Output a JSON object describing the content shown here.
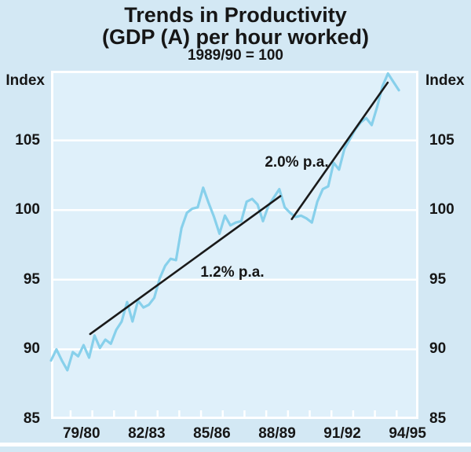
{
  "chart_data": {
    "type": "line",
    "title": "Trends in Productivity",
    "subtitle": "(GDP (A) per hour worked)",
    "index_base_note": "1989/90 = 100",
    "ylabel_left": "Index",
    "ylabel_right": "Index",
    "ylim": [
      85,
      110
    ],
    "yticks": [
      85,
      90,
      95,
      100,
      105
    ],
    "gridlines": [
      90,
      95,
      100,
      105
    ],
    "x_tick_labels": [
      "79/80",
      "82/83",
      "85/86",
      "88/89",
      "91/92",
      "94/95"
    ],
    "axis_layout": {
      "first_tick_quarter": 3.6,
      "quarters_per_tick": 4,
      "ticks_count": 16,
      "label_every": 3,
      "total_quarters": 67.6
    },
    "series": [
      {
        "name": "GDP (A) per hour worked, index 1989/90 = 100",
        "frequency": "quarterly",
        "values": [
          89.2,
          90.0,
          89.2,
          88.5,
          89.8,
          89.5,
          90.3,
          89.4,
          91.0,
          90.1,
          90.7,
          90.4,
          91.4,
          92.0,
          93.4,
          92.0,
          93.5,
          93.0,
          93.2,
          93.7,
          95.1,
          96.0,
          96.5,
          96.4,
          98.7,
          99.8,
          100.1,
          100.2,
          101.6,
          100.5,
          99.5,
          98.3,
          99.6,
          98.9,
          99.1,
          99.2,
          100.6,
          100.8,
          100.4,
          99.2,
          100.3,
          100.9,
          101.5,
          100.2,
          99.8,
          99.5,
          99.6,
          99.4,
          99.1,
          100.6,
          101.5,
          101.7,
          103.4,
          102.9,
          104.4,
          105.1,
          105.8,
          106.3,
          106.6,
          106.1,
          107.4,
          108.9,
          109.8,
          109.2,
          108.6
        ]
      }
    ],
    "trendlines": [
      {
        "label": "1.2% p.a.",
        "from_quarter": 7.2,
        "from_value": 91.1,
        "to_quarter": 42.2,
        "to_value": 101.0
      },
      {
        "label": "2.0% p.a.",
        "from_quarter": 44.3,
        "from_value": 99.35,
        "to_quarter": 61.95,
        "to_value": 109.15
      }
    ],
    "colors": {
      "line": "#87d0eb",
      "trend": "#1a1a1a",
      "background": "#d3e8f4",
      "plot_background": "#dff0fa",
      "grid": "#ffffff",
      "text": "#161616"
    }
  }
}
